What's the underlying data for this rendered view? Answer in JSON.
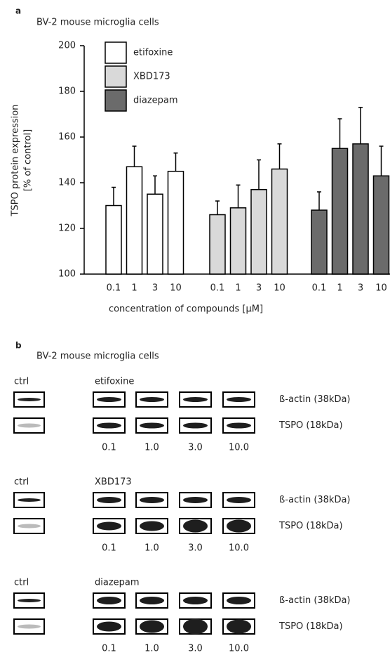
{
  "chart_data": {
    "type": "bar",
    "label": "a",
    "title": "BV-2 mouse microglia cells",
    "y_label": [
      "TSPO protein expression",
      "[% of control]"
    ],
    "x_label": "concentration of compounds [µM]",
    "categories": [
      "0.1",
      "1",
      "3",
      "10"
    ],
    "series": [
      {
        "name": "etifoxine",
        "color": "#ffffff",
        "values": [
          130,
          147,
          135,
          145
        ],
        "errors": [
          8,
          9,
          8,
          8
        ]
      },
      {
        "name": "XBD173",
        "color": "#d9d9d9",
        "values": [
          126,
          129,
          137,
          146
        ],
        "errors": [
          6,
          10,
          13,
          11
        ]
      },
      {
        "name": "diazepam",
        "color": "#6b6b6b",
        "values": [
          128,
          155,
          157,
          143
        ],
        "errors": [
          8,
          13,
          16,
          13
        ]
      }
    ],
    "ylim": [
      100,
      200
    ],
    "yticks": [
      100,
      120,
      140,
      160,
      180,
      200
    ],
    "legend": "top-left"
  },
  "blots": {
    "label": "b",
    "title": "BV-2 mouse microglia cells",
    "panels": [
      {
        "ctrl": "ctrl",
        "name": "etifoxine",
        "rows": [
          "ß-actin (38kDa)",
          "TSPO (18kDa)"
        ],
        "concentrations": [
          "0.1",
          "1.0",
          "3.0",
          "10.0"
        ]
      },
      {
        "ctrl": "ctrl",
        "name": "XBD173",
        "rows": [
          "ß-actin (38kDa)",
          "TSPO (18kDa)"
        ],
        "concentrations": [
          "0.1",
          "1.0",
          "3.0",
          "10.0"
        ]
      },
      {
        "ctrl": "ctrl",
        "name": "diazepam",
        "rows": [
          "ß-actin (38kDa)",
          "TSPO (18kDa)"
        ],
        "concentrations": [
          "0.1",
          "1.0",
          "3.0",
          "10.0"
        ]
      }
    ]
  }
}
